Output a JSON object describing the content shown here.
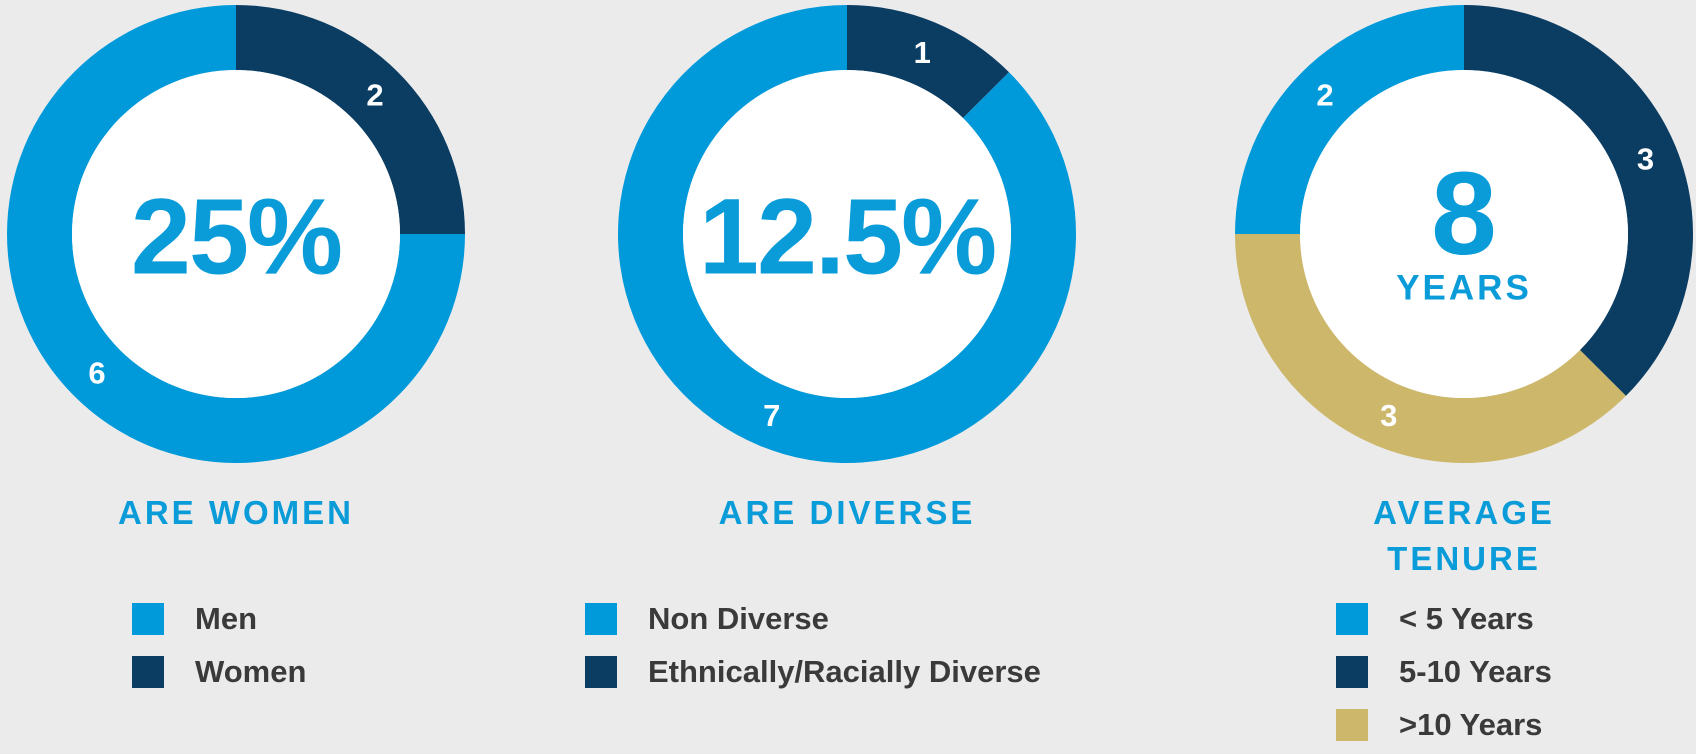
{
  "chart_data": [
    {
      "type": "donut",
      "center_text": "25%",
      "caption": "ARE WOMEN",
      "categories": [
        "Men",
        "Women"
      ],
      "values": [
        6,
        2
      ],
      "colors": [
        "#009ada",
        "#0b3d63"
      ]
    },
    {
      "type": "donut",
      "center_text": "12.5%",
      "caption": "ARE DIVERSE",
      "categories": [
        "Non Diverse",
        "Ethnically/Racially Diverse"
      ],
      "values": [
        7,
        1
      ],
      "colors": [
        "#009ada",
        "#0b3d63"
      ]
    },
    {
      "type": "donut",
      "center_text": "8",
      "center_subtext": "YEARS",
      "caption": "AVERAGE TENURE",
      "categories": [
        "< 5 Years",
        "5-10 Years",
        ">10 Years"
      ],
      "values": [
        2,
        3,
        3
      ],
      "colors": [
        "#009ada",
        "#0b3d63",
        "#cdb76a"
      ]
    }
  ]
}
